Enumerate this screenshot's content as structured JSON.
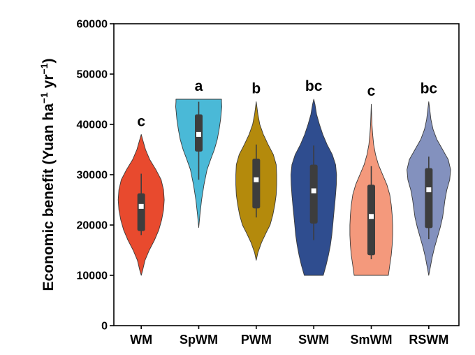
{
  "chart_data": {
    "type": "violin",
    "ylabel": {
      "text": "Economic benefit (Yuan ha",
      "sup1": "−1",
      "mid": " yr",
      "sup2": "−1",
      "end": ")"
    },
    "xlabel": "",
    "ylim": [
      0,
      60000
    ],
    "yticks": [
      0,
      10000,
      20000,
      30000,
      40000,
      50000,
      60000
    ],
    "yticklabels": [
      "0",
      "10000",
      "20000",
      "30000",
      "40000",
      "50000",
      "60000"
    ],
    "grid": false,
    "categories": [
      "WM",
      "SpWM",
      "PWM",
      "SWM",
      "SmWM",
      "RSWM"
    ],
    "series": [
      {
        "category": "WM",
        "color": "#e84a2e",
        "letter": "c",
        "min": 10000,
        "max": 38000,
        "q1": 18800,
        "median": 23700,
        "q3": 26300,
        "whisker_low": 18000,
        "whisker_high": 30200,
        "profile": [
          [
            10000,
            0
          ],
          [
            11000,
            0.06
          ],
          [
            13000,
            0.16
          ],
          [
            15000,
            0.34
          ],
          [
            17000,
            0.56
          ],
          [
            19000,
            0.74
          ],
          [
            21000,
            0.86
          ],
          [
            23000,
            0.94
          ],
          [
            25000,
            0.97
          ],
          [
            27000,
            0.94
          ],
          [
            29000,
            0.84
          ],
          [
            31000,
            0.62
          ],
          [
            33000,
            0.36
          ],
          [
            35000,
            0.18
          ],
          [
            37000,
            0.06
          ],
          [
            38000,
            0
          ]
        ]
      },
      {
        "category": "SpWM",
        "color": "#4ab9d7",
        "letter": "a",
        "min": 19500,
        "max": 45000,
        "q1": 34600,
        "median": 38000,
        "q3": 42000,
        "whisker_low": 29000,
        "whisker_high": 44500,
        "profile": [
          [
            19500,
            0
          ],
          [
            22000,
            0.05
          ],
          [
            25000,
            0.12
          ],
          [
            28000,
            0.22
          ],
          [
            31000,
            0.35
          ],
          [
            33000,
            0.5
          ],
          [
            35000,
            0.66
          ],
          [
            37000,
            0.78
          ],
          [
            39000,
            0.86
          ],
          [
            41000,
            0.92
          ],
          [
            42500,
            0.95
          ],
          [
            43500,
            0.97
          ],
          [
            44500,
            0.96
          ],
          [
            45000,
            0.96
          ]
        ]
      },
      {
        "category": "PWM",
        "color": "#b48a0c",
        "letter": "b",
        "min": 13000,
        "max": 44500,
        "q1": 23300,
        "median": 29000,
        "q3": 33200,
        "whisker_low": 21500,
        "whisker_high": 36000,
        "profile": [
          [
            13000,
            0
          ],
          [
            14500,
            0.07
          ],
          [
            16500,
            0.22
          ],
          [
            18500,
            0.42
          ],
          [
            20000,
            0.58
          ],
          [
            22000,
            0.7
          ],
          [
            24000,
            0.78
          ],
          [
            26000,
            0.84
          ],
          [
            28000,
            0.86
          ],
          [
            30000,
            0.86
          ],
          [
            32000,
            0.84
          ],
          [
            34000,
            0.72
          ],
          [
            36000,
            0.5
          ],
          [
            38000,
            0.3
          ],
          [
            40000,
            0.15
          ],
          [
            42000,
            0.07
          ],
          [
            44500,
            0
          ]
        ]
      },
      {
        "category": "SWM",
        "color": "#2f4d8f",
        "letter": "bc",
        "min": 10000,
        "max": 45000,
        "q1": 20300,
        "median": 26800,
        "q3": 32000,
        "whisker_low": 17000,
        "whisker_high": 35800,
        "profile": [
          [
            10000,
            0.4
          ],
          [
            12000,
            0.52
          ],
          [
            14000,
            0.62
          ],
          [
            16000,
            0.7
          ],
          [
            18000,
            0.76
          ],
          [
            20000,
            0.8
          ],
          [
            22000,
            0.84
          ],
          [
            24000,
            0.88
          ],
          [
            26000,
            0.92
          ],
          [
            28000,
            0.95
          ],
          [
            30000,
            0.96
          ],
          [
            32000,
            0.92
          ],
          [
            34000,
            0.78
          ],
          [
            36000,
            0.56
          ],
          [
            38000,
            0.38
          ],
          [
            40000,
            0.24
          ],
          [
            42000,
            0.12
          ],
          [
            44000,
            0.05
          ],
          [
            45000,
            0
          ]
        ]
      },
      {
        "category": "SmWM",
        "color": "#f4997c",
        "letter": "c",
        "min": 10000,
        "max": 44000,
        "q1": 14000,
        "median": 21700,
        "q3": 28000,
        "whisker_low": 13200,
        "whisker_high": 31700,
        "profile": [
          [
            10000,
            0.72
          ],
          [
            12000,
            0.78
          ],
          [
            14000,
            0.84
          ],
          [
            16000,
            0.88
          ],
          [
            18000,
            0.9
          ],
          [
            20000,
            0.9
          ],
          [
            22000,
            0.88
          ],
          [
            24000,
            0.84
          ],
          [
            26000,
            0.78
          ],
          [
            28000,
            0.66
          ],
          [
            30000,
            0.48
          ],
          [
            32000,
            0.3
          ],
          [
            34000,
            0.18
          ],
          [
            36000,
            0.1
          ],
          [
            38000,
            0.06
          ],
          [
            40000,
            0.03
          ],
          [
            42000,
            0.015
          ],
          [
            44000,
            0
          ]
        ]
      },
      {
        "category": "RSWM",
        "color": "#8391be",
        "letter": "bc",
        "min": 10000,
        "max": 44500,
        "q1": 19400,
        "median": 27000,
        "q3": 31300,
        "whisker_low": 17200,
        "whisker_high": 33600,
        "profile": [
          [
            10000,
            0
          ],
          [
            11500,
            0.06
          ],
          [
            13500,
            0.14
          ],
          [
            15500,
            0.24
          ],
          [
            17500,
            0.36
          ],
          [
            19500,
            0.48
          ],
          [
            21500,
            0.58
          ],
          [
            23500,
            0.64
          ],
          [
            25000,
            0.68
          ],
          [
            27000,
            0.76
          ],
          [
            29000,
            0.88
          ],
          [
            31000,
            0.92
          ],
          [
            33000,
            0.82
          ],
          [
            35000,
            0.58
          ],
          [
            37000,
            0.34
          ],
          [
            39000,
            0.18
          ],
          [
            41000,
            0.09
          ],
          [
            43000,
            0.04
          ],
          [
            44500,
            0
          ]
        ]
      }
    ]
  }
}
